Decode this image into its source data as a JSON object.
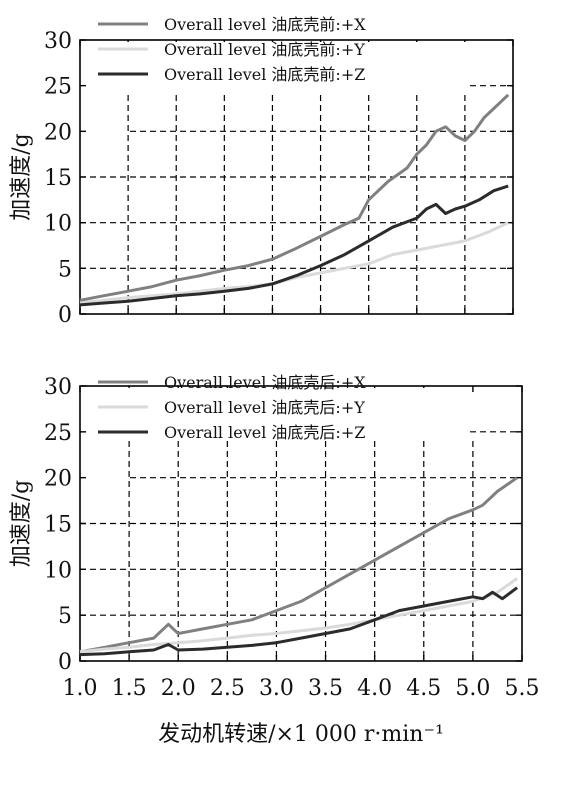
{
  "chart_data": [
    {
      "type": "line",
      "title": "",
      "xlabel": "",
      "ylabel": "加速度/g",
      "xlim": [
        1.0,
        5.5
      ],
      "ylim": [
        0,
        30
      ],
      "xticks": [
        "1.0",
        "1.5",
        "2.0",
        "2.5",
        "3.0",
        "3.5",
        "4.0",
        "4.5",
        "5.0",
        "5.5"
      ],
      "yticks": [
        "0",
        "5",
        "10",
        "15",
        "20",
        "25",
        "30"
      ],
      "grid": true,
      "legend": "top-left",
      "series": [
        {
          "name": "Overall level 油底壳前:+X",
          "color": "#808080",
          "x": [
            1.0,
            1.25,
            1.5,
            1.75,
            2.0,
            2.25,
            2.5,
            2.75,
            3.0,
            3.25,
            3.5,
            3.75,
            3.9,
            4.0,
            4.2,
            4.4,
            4.5,
            4.6,
            4.7,
            4.8,
            4.9,
            5.0,
            5.1,
            5.2,
            5.3,
            5.45
          ],
          "y": [
            1.5,
            2.0,
            2.5,
            3.0,
            3.7,
            4.2,
            4.8,
            5.3,
            6.0,
            7.2,
            8.5,
            9.8,
            10.5,
            12.5,
            14.5,
            16.0,
            17.5,
            18.5,
            20.0,
            20.5,
            19.5,
            19.0,
            20.0,
            21.5,
            22.5,
            24.0
          ]
        },
        {
          "name": "Overall level 油底壳前:+Y",
          "color": "#dadada",
          "x": [
            1.0,
            1.25,
            1.5,
            1.75,
            2.0,
            2.25,
            2.5,
            2.75,
            3.0,
            3.25,
            3.5,
            3.75,
            4.0,
            4.25,
            4.5,
            4.75,
            5.0,
            5.25,
            5.45
          ],
          "y": [
            1.2,
            1.5,
            1.8,
            2.0,
            2.2,
            2.5,
            2.8,
            3.0,
            3.3,
            4.0,
            4.5,
            5.0,
            5.5,
            6.5,
            7.0,
            7.5,
            8.0,
            9.0,
            10.0
          ]
        },
        {
          "name": "Overall level 油底壳前:+Z",
          "color": "#2b2b2b",
          "x": [
            1.0,
            1.25,
            1.5,
            1.75,
            2.0,
            2.25,
            2.5,
            2.75,
            3.0,
            3.25,
            3.5,
            3.75,
            4.0,
            4.25,
            4.5,
            4.6,
            4.7,
            4.8,
            4.9,
            5.0,
            5.15,
            5.3,
            5.45
          ],
          "y": [
            1.0,
            1.2,
            1.4,
            1.7,
            2.0,
            2.2,
            2.5,
            2.8,
            3.3,
            4.2,
            5.3,
            6.5,
            8.0,
            9.5,
            10.5,
            11.5,
            12.0,
            11.0,
            11.5,
            11.8,
            12.5,
            13.5,
            14.0
          ]
        }
      ]
    },
    {
      "type": "line",
      "title": "",
      "xlabel": "发动机转速/×1 000 r·min⁻¹",
      "ylabel": "加速度/g",
      "xlim": [
        1.0,
        5.5
      ],
      "ylim": [
        0,
        30
      ],
      "xticks": [
        "1.0",
        "1.5",
        "2.0",
        "2.5",
        "3.0",
        "3.5",
        "4.0",
        "4.5",
        "5.0",
        "5.5"
      ],
      "yticks": [
        "0",
        "5",
        "10",
        "15",
        "20",
        "25",
        "30"
      ],
      "grid": true,
      "legend": "top-left",
      "series": [
        {
          "name": "Overall level 油底壳后:+X",
          "color": "#808080",
          "x": [
            1.0,
            1.25,
            1.5,
            1.75,
            1.9,
            2.0,
            2.1,
            2.25,
            2.5,
            2.75,
            3.0,
            3.25,
            3.5,
            3.75,
            4.0,
            4.25,
            4.5,
            4.75,
            5.0,
            5.1,
            5.25,
            5.45
          ],
          "y": [
            1.0,
            1.5,
            2.0,
            2.5,
            4.0,
            3.0,
            3.2,
            3.5,
            4.0,
            4.5,
            5.5,
            6.5,
            8.0,
            9.5,
            11.0,
            12.5,
            14.0,
            15.5,
            16.5,
            17.0,
            18.5,
            20.0
          ]
        },
        {
          "name": "Overall level 油底壳后:+Y",
          "color": "#dadada",
          "x": [
            1.0,
            1.25,
            1.5,
            1.75,
            2.0,
            2.25,
            2.5,
            2.75,
            3.0,
            3.25,
            3.5,
            3.75,
            4.0,
            4.25,
            4.5,
            4.75,
            5.0,
            5.25,
            5.45
          ],
          "y": [
            1.0,
            1.3,
            1.5,
            1.8,
            2.0,
            2.2,
            2.5,
            2.8,
            3.0,
            3.3,
            3.6,
            4.0,
            4.5,
            5.0,
            5.5,
            6.0,
            6.5,
            7.5,
            9.0
          ]
        },
        {
          "name": "Overall level 油底壳后:+Z",
          "color": "#2b2b2b",
          "x": [
            1.0,
            1.25,
            1.5,
            1.75,
            1.9,
            2.0,
            2.25,
            2.5,
            2.75,
            3.0,
            3.25,
            3.5,
            3.75,
            4.0,
            4.25,
            4.5,
            4.75,
            5.0,
            5.1,
            5.2,
            5.3,
            5.45
          ],
          "y": [
            0.7,
            0.8,
            1.0,
            1.2,
            1.8,
            1.2,
            1.3,
            1.5,
            1.7,
            2.0,
            2.5,
            3.0,
            3.5,
            4.5,
            5.5,
            6.0,
            6.5,
            7.0,
            6.8,
            7.5,
            6.8,
            8.0
          ]
        }
      ]
    }
  ]
}
